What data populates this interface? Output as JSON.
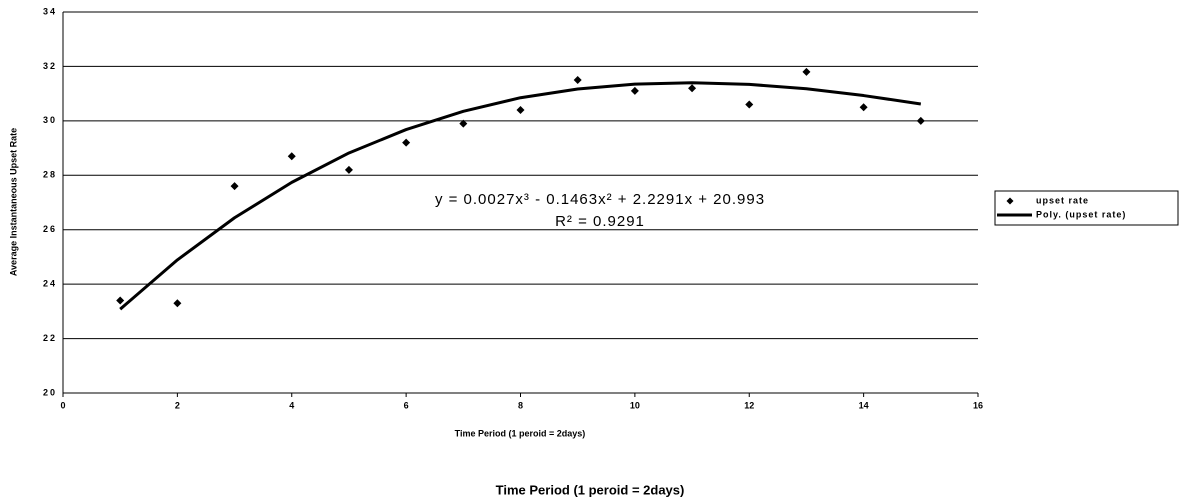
{
  "chart_data": {
    "type": "scatter",
    "x_label": "Time Period (1 peroid = 2days)",
    "y_label": "Average Instantaneous Upset Rate",
    "annotations": [
      "y = 0.0027x³ - 0.1463x² + 2.2291x + 20.993",
      "R² = 0.9291"
    ],
    "footer": "Time Period (1 peroid = 2days)",
    "xlim": [
      0,
      16
    ],
    "xticks": [
      0,
      2,
      4,
      6,
      8,
      10,
      12,
      14,
      16
    ],
    "ylim": [
      20,
      34
    ],
    "yticks": [
      20,
      22,
      24,
      26,
      28,
      30,
      32,
      34
    ],
    "grid": true,
    "legend": "right",
    "series": [
      {
        "name": "upset rate",
        "color": "#000000",
        "style": "markers",
        "x": [
          1,
          2,
          3,
          4,
          5,
          6,
          7,
          8,
          9,
          10,
          11,
          12,
          13,
          14,
          15
        ],
        "values": [
          23.4,
          23.3,
          27.6,
          28.7,
          28.2,
          29.2,
          29.9,
          30.4,
          31.5,
          31.1,
          31.2,
          30.6,
          31.8,
          30.5,
          30.0
        ]
      },
      {
        "name": "Poly. (upset rate)",
        "color": "#000000",
        "style": "line",
        "x": [
          1,
          2,
          3,
          4,
          5,
          6,
          7,
          8,
          9,
          10,
          11,
          12,
          13,
          14,
          15
        ],
        "values": [
          23.08,
          24.89,
          26.44,
          27.74,
          28.82,
          29.68,
          30.35,
          30.85,
          31.17,
          31.35,
          31.4,
          31.34,
          31.18,
          30.93,
          30.62
        ]
      }
    ]
  }
}
